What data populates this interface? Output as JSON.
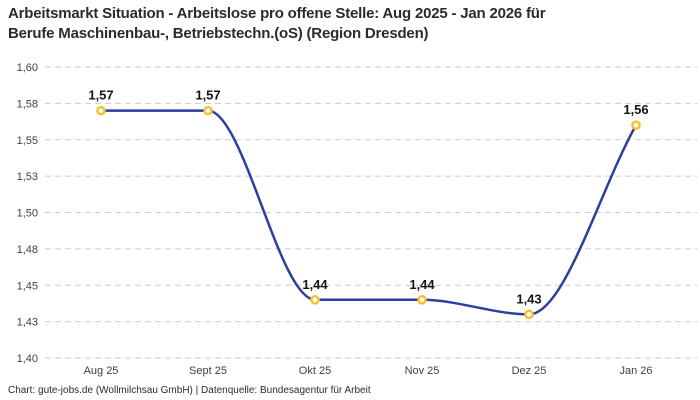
{
  "header": {
    "title_line1": "Arbeitsmarkt Situation - Arbeitslose pro offene Stelle: Aug 2025 - Jan 2026 für",
    "title_line2": "Berufe Maschinenbau-, Betriebstechn.(oS) (Region Dresden)"
  },
  "footer": {
    "text": "Chart: gute-jobs.de (Wollmilchsau GmbH) | Datenquelle: Bundesagentur für Arbeit"
  },
  "chart_data": {
    "type": "line",
    "title": "Arbeitsmarkt Situation - Arbeitslose pro offene Stelle: Aug 2025 - Jan 2026 für Berufe Maschinenbau-, Betriebstechn.(oS) (Region Dresden)",
    "categories": [
      "Aug 25",
      "Sept 25",
      "Okt 25",
      "Nov 25",
      "Dez 25",
      "Jan 26"
    ],
    "values": [
      1.57,
      1.57,
      1.44,
      1.44,
      1.43,
      1.56
    ],
    "point_labels": [
      "1,57",
      "1,57",
      "1,44",
      "1,44",
      "1,43",
      "1,56"
    ],
    "xlabel": "",
    "ylabel": "",
    "ylim": [
      1.4,
      1.6
    ],
    "yticks": [
      1.4,
      1.425,
      1.45,
      1.475,
      1.5,
      1.525,
      1.55,
      1.575,
      1.6
    ],
    "ytick_labels": [
      "1,40",
      "1,43",
      "1,45",
      "1,48",
      "1,50",
      "1,53",
      "1,55",
      "1,58",
      "1,60"
    ],
    "grid": "horizontal-dashed",
    "legend": "none",
    "smoothing": "monotone",
    "line_color": "#2B3F9C",
    "marker_color": "#F9BE2B",
    "marker_fill": "#FFFFFF",
    "grid_color": "#CBCBCB",
    "tick_color": "#404040",
    "label_color": "#141414"
  }
}
